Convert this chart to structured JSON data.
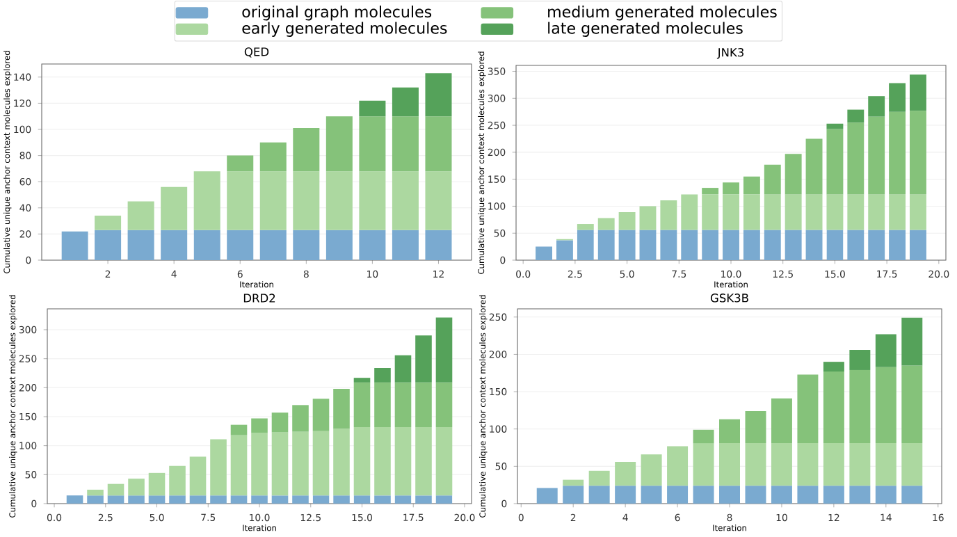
{
  "chart_data": [
    {
      "type": "bar",
      "stacked": true,
      "title": "QED",
      "xlabel": "Iteration",
      "ylabel": "Cumulative unique anchor context molecules explored",
      "grid": "y",
      "legend": "top",
      "x": [
        1,
        2,
        3,
        4,
        5,
        6,
        7,
        8,
        9,
        10,
        11,
        12
      ],
      "xlim": [
        0,
        13
      ],
      "xticks": [
        2,
        4,
        6,
        8,
        10,
        12
      ],
      "ylim": [
        0,
        150
      ],
      "yticks": [
        0,
        20,
        40,
        60,
        80,
        100,
        120,
        140
      ],
      "series": [
        {
          "name": "original graph molecules",
          "color": "#7aaad0",
          "values": [
            22,
            23,
            23,
            23,
            23,
            23,
            23,
            23,
            23,
            23,
            23,
            23
          ]
        },
        {
          "name": "early generated molecules",
          "color": "#acd8a0",
          "values": [
            null,
            11,
            22,
            33,
            45,
            45,
            45,
            45,
            45,
            45,
            45,
            45
          ]
        },
        {
          "name": "medium generated molecules",
          "color": "#85c27a",
          "values": [
            null,
            null,
            null,
            null,
            null,
            12,
            22,
            33,
            42,
            42,
            42,
            42
          ]
        },
        {
          "name": "late generated molecules",
          "color": "#55a25a",
          "values": [
            null,
            null,
            null,
            null,
            null,
            null,
            null,
            null,
            null,
            12,
            22,
            33
          ]
        }
      ]
    },
    {
      "type": "bar",
      "stacked": true,
      "title": "JNK3",
      "xlabel": "Iteration",
      "ylabel": "Cumulative unique anchor context molecules explored",
      "grid": "y",
      "x": [
        1,
        2,
        3,
        4,
        5,
        6,
        7,
        8,
        9,
        10,
        11,
        12,
        13,
        14,
        15,
        16,
        17,
        18,
        19
      ],
      "xlim": [
        -0.34,
        20.34
      ],
      "xticks": [
        {
          "value": 0,
          "label": "0.0"
        },
        {
          "value": 2.5,
          "label": "2.5"
        },
        {
          "value": 5,
          "label": "5.0"
        },
        {
          "value": 7.5,
          "label": "7.5"
        },
        {
          "value": 10,
          "label": "10.0"
        },
        {
          "value": 12.5,
          "label": "12.5"
        },
        {
          "value": 15,
          "label": "15.0"
        },
        {
          "value": 17.5,
          "label": "17.5"
        },
        {
          "value": 20,
          "label": "20.0"
        }
      ],
      "ylim": [
        0,
        361
      ],
      "yticks": [
        0,
        50,
        100,
        150,
        200,
        250,
        300,
        350
      ],
      "series": [
        {
          "color": "#7aaad0",
          "values": [
            25,
            37,
            56,
            56,
            56,
            56,
            56,
            56,
            56,
            56,
            56,
            56,
            56,
            56,
            56,
            56,
            56,
            56,
            56
          ]
        },
        {
          "color": "#acd8a0",
          "values": [
            null,
            2,
            11,
            22,
            33,
            44,
            55,
            66,
            66,
            66,
            66,
            66,
            66,
            66,
            66,
            66,
            66,
            66,
            66
          ]
        },
        {
          "color": "#85c27a",
          "values": [
            null,
            null,
            null,
            null,
            null,
            null,
            null,
            null,
            12,
            22,
            33,
            55,
            75,
            103,
            121,
            133,
            144,
            153,
            155
          ]
        },
        {
          "color": "#55a25a",
          "values": [
            null,
            null,
            null,
            null,
            null,
            null,
            null,
            null,
            null,
            null,
            null,
            null,
            null,
            null,
            10,
            24,
            38,
            53,
            67
          ]
        }
      ]
    },
    {
      "type": "bar",
      "stacked": true,
      "title": "DRD2",
      "xlabel": "Iteration",
      "ylabel": "Cumulative unique anchor context molecules explored",
      "grid": "y",
      "x": [
        1,
        2,
        3,
        4,
        5,
        6,
        7,
        8,
        9,
        10,
        11,
        12,
        13,
        14,
        15,
        16,
        17,
        18,
        19
      ],
      "xlim": [
        -0.34,
        20.34
      ],
      "xticks": [
        {
          "value": 0,
          "label": "0.0"
        },
        {
          "value": 2.5,
          "label": "2.5"
        },
        {
          "value": 5,
          "label": "5.0"
        },
        {
          "value": 7.5,
          "label": "7.5"
        },
        {
          "value": 10,
          "label": "10.0"
        },
        {
          "value": 12.5,
          "label": "12.5"
        },
        {
          "value": 15,
          "label": "15.0"
        },
        {
          "value": 17.5,
          "label": "17.5"
        },
        {
          "value": 20,
          "label": "20.0"
        }
      ],
      "ylim": [
        0,
        336
      ],
      "yticks": [
        0,
        50,
        100,
        150,
        200,
        250,
        300
      ],
      "series": [
        {
          "color": "#7aaad0",
          "values": [
            14,
            14,
            14,
            14,
            14,
            14,
            14,
            14,
            14,
            14,
            14,
            14,
            14,
            14,
            14,
            14,
            14,
            14,
            14
          ]
        },
        {
          "color": "#acd8a0",
          "values": [
            null,
            10,
            20,
            29,
            39,
            51,
            67,
            97,
            104,
            108,
            109,
            110,
            111,
            115,
            118,
            118,
            118,
            118,
            118
          ]
        },
        {
          "color": "#85c27a",
          "values": [
            null,
            null,
            null,
            null,
            null,
            null,
            null,
            null,
            18,
            25,
            34,
            46,
            56,
            69,
            77,
            77,
            77,
            77,
            77
          ]
        },
        {
          "color": "#55a25a",
          "values": [
            null,
            null,
            null,
            null,
            null,
            null,
            null,
            null,
            null,
            null,
            null,
            null,
            null,
            null,
            8,
            25,
            47,
            81,
            112
          ]
        }
      ]
    },
    {
      "type": "bar",
      "stacked": true,
      "title": "GSK3B",
      "xlabel": "Iteration",
      "ylabel": "Cumulative unique anchor context molecules explored",
      "grid": "y",
      "x": [
        1,
        2,
        3,
        4,
        5,
        6,
        7,
        8,
        9,
        10,
        11,
        12,
        13,
        14,
        15
      ],
      "xlim": [
        -0.14,
        16.14
      ],
      "xticks": [
        0,
        2,
        4,
        6,
        8,
        10,
        12,
        14,
        16
      ],
      "ylim": [
        0,
        261
      ],
      "yticks": [
        0,
        50,
        100,
        150,
        200,
        250
      ],
      "series": [
        {
          "color": "#7aaad0",
          "values": [
            21,
            24,
            24,
            24,
            24,
            24,
            24,
            24,
            24,
            24,
            24,
            24,
            24,
            24,
            24
          ]
        },
        {
          "color": "#acd8a0",
          "values": [
            null,
            8,
            20,
            32,
            42,
            53,
            57,
            57,
            57,
            57,
            57,
            57,
            57,
            57,
            57
          ]
        },
        {
          "color": "#85c27a",
          "values": [
            null,
            null,
            null,
            null,
            null,
            null,
            18,
            32,
            43,
            60,
            92,
            96,
            98,
            102,
            104
          ]
        },
        {
          "color": "#55a25a",
          "values": [
            null,
            null,
            null,
            null,
            null,
            null,
            null,
            null,
            null,
            null,
            null,
            13,
            27,
            44,
            64
          ]
        }
      ]
    }
  ]
}
